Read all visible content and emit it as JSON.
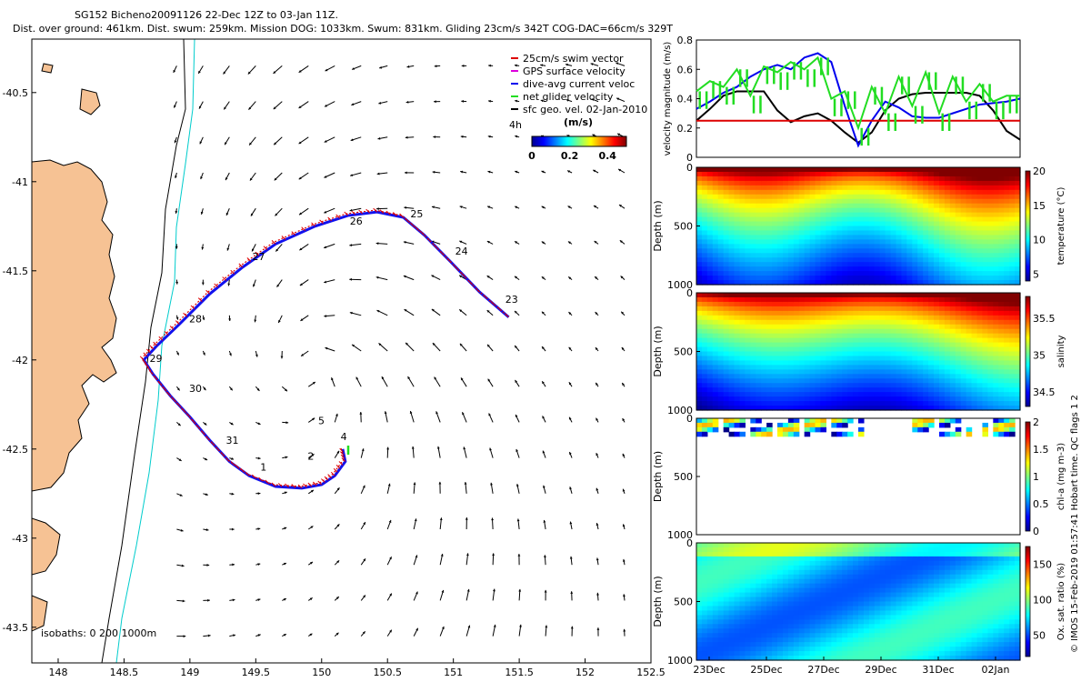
{
  "header": {
    "line1": "SG152 Bicheno20091126 22-Dec 12Z to 03-Jan 11Z.",
    "line2": "Dist. over ground: 461km. Dist. swum: 259km. Mission DOG: 1033km. Swum: 831km. Gliding 23cm/s 342T COG-DAC=66cm/s 329T"
  },
  "side_note": "© IMOS 15-Feb-2019 01:57:41 Hobart time. QC flags 1 2",
  "colors": {
    "land": "#f6c294",
    "swim": "#dd0000",
    "gps": "#dd00dd",
    "dive_avg": "#0000ee",
    "net": "#22dd22",
    "isobath_200": "#00cccc",
    "isobath_1000": "#000000"
  },
  "chart_data": [
    {
      "type": "map",
      "xlim": [
        147.8,
        152.5
      ],
      "ylim": [
        -43.7,
        -40.2
      ],
      "xticks": [
        "148",
        "148.5",
        "149",
        "149.5",
        "150",
        "150.5",
        "151",
        "151.5",
        "152",
        "152.5"
      ],
      "yticks": [
        "-40.5",
        "-41",
        "-41.5",
        "-42",
        "-42.5",
        "-43",
        "-43.5"
      ],
      "legend": {
        "position": "top-right",
        "items": [
          "25cm/s swim vector",
          "GPS surface velocity",
          "dive-avg current veloc",
          "net glider velocity",
          "sfc geo. vel. 02-Jan-2010"
        ]
      },
      "colorbar": {
        "title": "(m/s)",
        "ticks": [
          "0",
          "0.2",
          "0.4"
        ],
        "range": [
          0,
          0.5
        ]
      },
      "corner_label": "4h",
      "isobaths_label": "isobaths: 0   200  1000m",
      "track": [
        [
          151.42,
          -41.76
        ],
        [
          151.2,
          -41.62
        ],
        [
          150.98,
          -41.45
        ],
        [
          150.78,
          -41.3
        ],
        [
          150.62,
          -41.2
        ],
        [
          150.42,
          -41.17
        ],
        [
          150.2,
          -41.19
        ],
        [
          149.95,
          -41.25
        ],
        [
          149.65,
          -41.35
        ],
        [
          149.4,
          -41.48
        ],
        [
          149.15,
          -41.63
        ],
        [
          148.92,
          -41.8
        ],
        [
          148.75,
          -41.92
        ],
        [
          148.65,
          -42.0
        ],
        [
          148.72,
          -42.08
        ],
        [
          148.85,
          -42.2
        ],
        [
          149.0,
          -42.32
        ],
        [
          149.15,
          -42.45
        ],
        [
          149.3,
          -42.57
        ],
        [
          149.45,
          -42.65
        ],
        [
          149.65,
          -42.71
        ],
        [
          149.85,
          -42.72
        ],
        [
          150.0,
          -42.7
        ],
        [
          150.1,
          -42.65
        ],
        [
          150.18,
          -42.57
        ],
        [
          150.16,
          -42.5
        ]
      ],
      "day_labels": [
        {
          "label": "23",
          "lon": 151.38,
          "lat": -41.68
        },
        {
          "label": "24",
          "lon": 151.0,
          "lat": -41.41
        },
        {
          "label": "25",
          "lon": 150.66,
          "lat": -41.2
        },
        {
          "label": "26",
          "lon": 150.2,
          "lat": -41.24
        },
        {
          "label": "27",
          "lon": 149.46,
          "lat": -41.44
        },
        {
          "label": "28",
          "lon": 148.98,
          "lat": -41.79
        },
        {
          "label": "29",
          "lon": 148.68,
          "lat": -42.01
        },
        {
          "label": "30",
          "lon": 148.98,
          "lat": -42.18
        },
        {
          "label": "31",
          "lon": 149.26,
          "lat": -42.47
        },
        {
          "label": "1",
          "lon": 149.52,
          "lat": -42.62
        },
        {
          "label": "2",
          "lon": 149.88,
          "lat": -42.56
        },
        {
          "label": "4",
          "lon": 150.13,
          "lat": -42.45
        },
        {
          "label": "5",
          "lon": 149.96,
          "lat": -42.36
        }
      ]
    },
    {
      "type": "line",
      "ylabel": "velocity magnitude (m/s)",
      "ylim": [
        0,
        0.8
      ],
      "yticks": [
        "0",
        "0.2",
        "0.4",
        "0.6",
        "0.8"
      ],
      "x": [
        0,
        0.5,
        1,
        1.5,
        2,
        2.5,
        3,
        3.5,
        4,
        4.5,
        5,
        5.5,
        6,
        6.5,
        7,
        7.5,
        8,
        8.5,
        9,
        9.5,
        10,
        10.5,
        11,
        11.5,
        12
      ],
      "series": [
        {
          "color": "#000000",
          "values": [
            0.25,
            0.33,
            0.42,
            0.45,
            0.45,
            0.45,
            0.32,
            0.24,
            0.28,
            0.3,
            0.25,
            0.17,
            0.1,
            0.17,
            0.32,
            0.4,
            0.43,
            0.44,
            0.44,
            0.44,
            0.44,
            0.42,
            0.32,
            0.18,
            0.12
          ]
        },
        {
          "color": "#0000ee",
          "values": [
            0.33,
            0.38,
            0.44,
            0.48,
            0.55,
            0.6,
            0.63,
            0.6,
            0.68,
            0.71,
            0.65,
            0.35,
            0.08,
            0.25,
            0.38,
            0.34,
            0.28,
            0.27,
            0.27,
            0.3,
            0.33,
            0.36,
            0.37,
            0.38,
            0.4
          ]
        },
        {
          "color": "#dd0000",
          "values": [
            0.25,
            0.25,
            0.25,
            0.25,
            0.25,
            0.25,
            0.25,
            0.25,
            0.25,
            0.25,
            0.25,
            0.25,
            0.25,
            0.25,
            0.25,
            0.25,
            0.25,
            0.25,
            0.25,
            0.25,
            0.25,
            0.25,
            0.25,
            0.25,
            0.25
          ]
        },
        {
          "color": "#22dd22",
          "values": [
            0.45,
            0.52,
            0.48,
            0.6,
            0.42,
            0.62,
            0.58,
            0.65,
            0.6,
            0.68,
            0.4,
            0.45,
            0.2,
            0.48,
            0.3,
            0.55,
            0.35,
            0.58,
            0.3,
            0.55,
            0.38,
            0.5,
            0.38,
            0.42,
            0.42
          ]
        }
      ]
    },
    {
      "type": "heatmap",
      "ylabel": "Depth (m)",
      "colorbar_label": "temperature (°C)",
      "yticks": [
        "0",
        "500",
        "1000"
      ],
      "cticks": [
        "5",
        "10",
        "15",
        "20"
      ],
      "crange": [
        4,
        20
      ]
    },
    {
      "type": "heatmap",
      "ylabel": "Depth (m)",
      "colorbar_label": "salinity",
      "yticks": [
        "0",
        "500",
        "1000"
      ],
      "cticks": [
        "34.5",
        "35",
        "35.5"
      ],
      "crange": [
        34.3,
        35.8
      ]
    },
    {
      "type": "heatmap",
      "ylabel": "Depth (m)",
      "colorbar_label": "chl-a (mg m-3)",
      "yticks": [
        "0",
        "500",
        "1000"
      ],
      "cticks": [
        "0",
        "0.5",
        "1",
        "1.5",
        "2"
      ],
      "crange": [
        0,
        2
      ]
    },
    {
      "type": "heatmap",
      "ylabel": "Depth (m)",
      "colorbar_label": "Ox. sat. ratio (%)",
      "yticks": [
        "0",
        "500",
        "1000"
      ],
      "cticks": [
        "50",
        "100",
        "150"
      ],
      "crange": [
        20,
        175
      ],
      "xticks": [
        "23Dec",
        "25Dec",
        "27Dec",
        "29Dec",
        "31Dec",
        "02Jan"
      ]
    }
  ]
}
